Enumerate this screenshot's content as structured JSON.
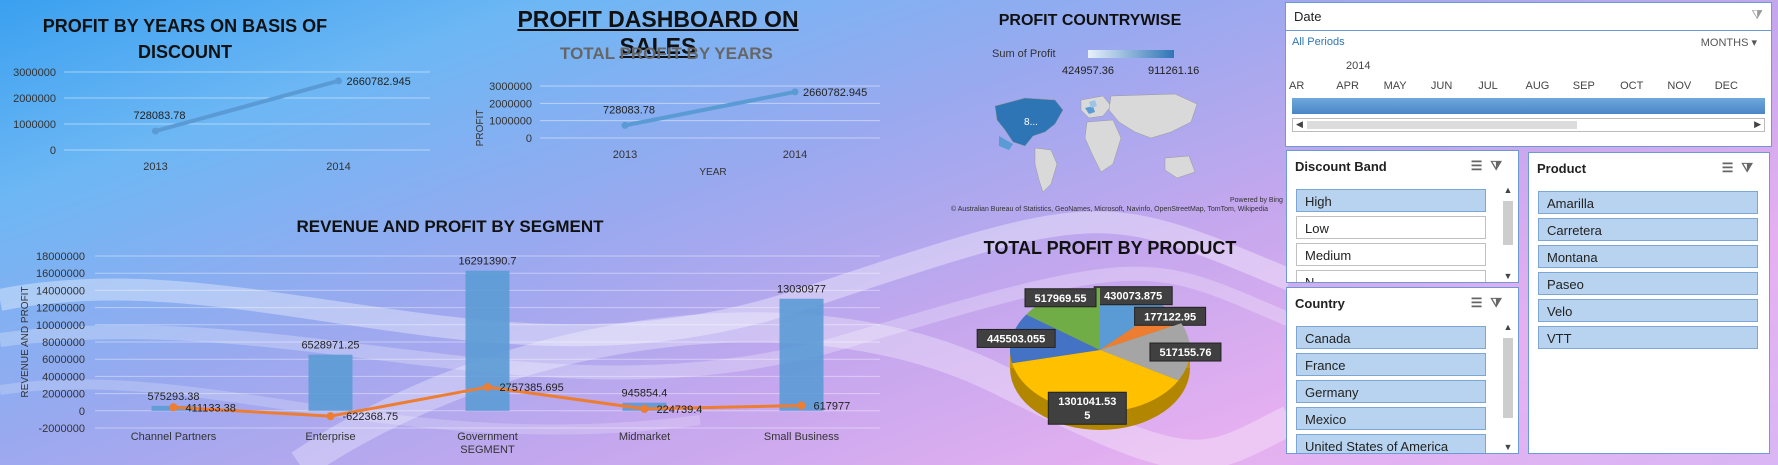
{
  "dashboard": {
    "title": "PROFIT DASHBOARD ON SALES"
  },
  "discount_chart": {
    "title": "PROFIT BY YEARS ON BASIS OF DISCOUNT",
    "chart_data": {
      "type": "line",
      "x": [
        "2013",
        "2014"
      ],
      "values": [
        728083.78,
        2660782.945
      ],
      "ylim": [
        0,
        3000000
      ],
      "yticks": [
        "0",
        "1000000",
        "2000000",
        "3000000"
      ],
      "labels": [
        "728083.78",
        "2660782.945"
      ]
    }
  },
  "years_chart": {
    "title": "TOTAL PROFIT BY YEARS",
    "ylabel": "PROFIT",
    "xlabel": "YEAR",
    "chart_data": {
      "type": "line",
      "x": [
        "2013",
        "2014"
      ],
      "values": [
        728083.78,
        2660782.945
      ],
      "ylim": [
        0,
        3000000
      ],
      "yticks": [
        "0",
        "1000000",
        "2000000",
        "3000000"
      ],
      "labels": [
        "728083.78",
        "2660782.945"
      ]
    }
  },
  "segment_chart": {
    "title": "REVENUE AND PROFIT BY SEGMENT",
    "ylabel": "REVENUE AND PROFIT",
    "xlabel": "SEGMENT",
    "chart_data": {
      "type": "bar",
      "categories": [
        "Channel Partners",
        "Enterprise",
        "Government",
        "Midmarket",
        "Small Business"
      ],
      "series": [
        {
          "values": [
            575293.38,
            6528971.25,
            16291390.7,
            945854.4,
            13030977
          ],
          "labels": [
            "575293.38",
            "6528971.25",
            "16291390.7",
            "945854.4",
            "13030977"
          ]
        },
        {
          "values": [
            411133.38,
            -622368.75,
            2757385.695,
            224739.4,
            617977
          ],
          "labels": [
            "411133.38",
            "-622368.75",
            "2757385.695",
            "224739.4",
            "617977"
          ]
        }
      ],
      "ylim": [
        -2000000,
        18000000
      ],
      "yticks": [
        "-2000000",
        "0",
        "2000000",
        "4000000",
        "6000000",
        "8000000",
        "10000000",
        "12000000",
        "14000000",
        "16000000",
        "18000000"
      ]
    }
  },
  "country_map": {
    "title": "PROFIT COUNTRYWISE",
    "legend_label": "Sum of Profit",
    "legend_min": "424957.36",
    "legend_max": "911261.16",
    "bubble_label": "8...",
    "powered": "Powered by Bing",
    "credits": "© Australian Bureau of Statistics, GeoNames, Microsoft, Navinfo, OpenStreetMap, TomTom, Wikipedia"
  },
  "product_chart": {
    "title": "TOTAL PROFIT BY PRODUCT",
    "chart_data": {
      "type": "pie",
      "values": [
        430073.875,
        177122.95,
        517155.76,
        1301041.535,
        445503.055,
        517969.55
      ],
      "labels": [
        "430073.875",
        "177122.95",
        "517155.76",
        "1301041.53\n5",
        "445503.055",
        "517969.55"
      ],
      "colors": [
        "#5b9bd5",
        "#ed7d31",
        "#a5a5a5",
        "#ffc000",
        "#4472c4",
        "#70ad47"
      ]
    }
  },
  "date_slicer": {
    "header": "Date",
    "period": "All Periods",
    "level": "MONTHS",
    "year": "2014",
    "months": [
      "AR",
      "APR",
      "MAY",
      "JUN",
      "JUL",
      "AUG",
      "SEP",
      "OCT",
      "NOV",
      "DEC"
    ]
  },
  "discount_slicer": {
    "header": "Discount Band",
    "items": [
      "High",
      "Low",
      "Medium",
      "N"
    ],
    "selected": [
      true,
      false,
      false,
      false
    ]
  },
  "country_slicer": {
    "header": "Country",
    "items": [
      "Canada",
      "France",
      "Germany",
      "Mexico",
      "United States of America"
    ]
  },
  "product_slicer": {
    "header": "Product",
    "items": [
      "Amarilla",
      "Carretera",
      "Montana",
      "Paseo",
      "Velo",
      "VTT"
    ]
  },
  "colors": {
    "line": "#5b9bd5",
    "bar": "#5b9bd5",
    "profit_line": "#ed7d31",
    "map_fill": "#2e75b6"
  }
}
